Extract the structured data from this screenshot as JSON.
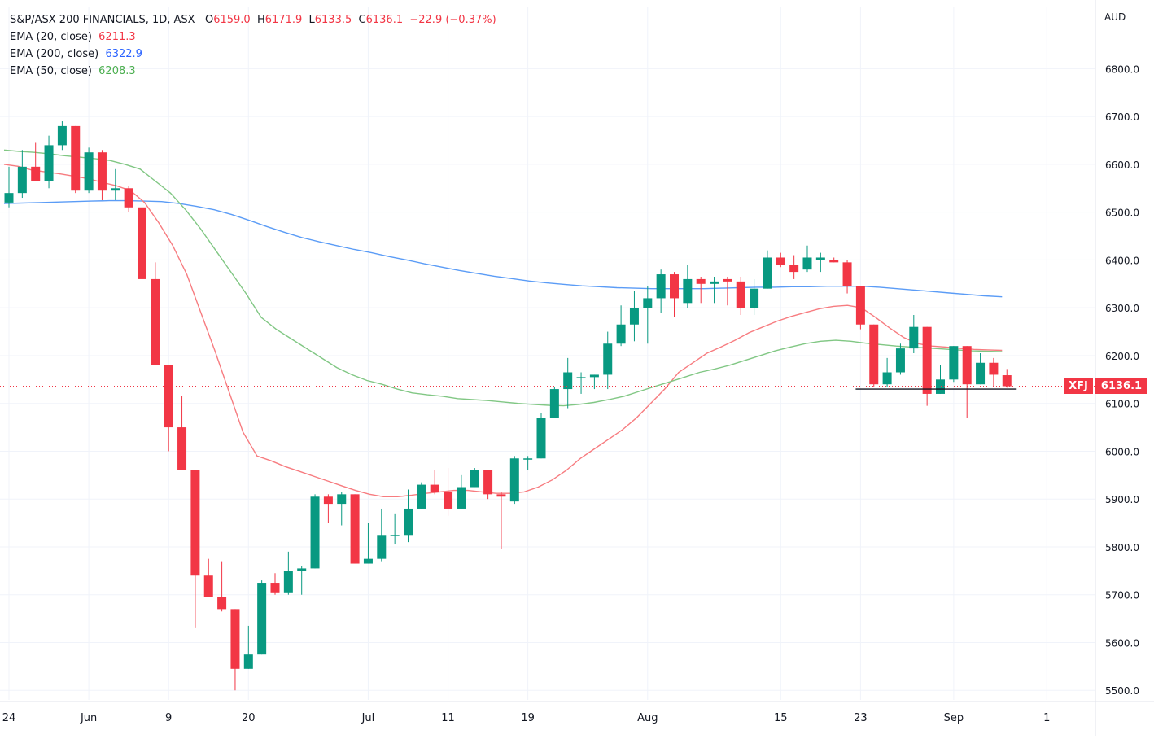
{
  "chart_data": {
    "type": "candlestick",
    "header": {
      "title": "S&P/ASX 200 FINANCIALS, 1D, ASX",
      "open_label": "O",
      "open": "6159.0",
      "high_label": "H",
      "high": "6171.9",
      "low_label": "L",
      "low": "6133.5",
      "close_label": "C",
      "close": "6136.1",
      "change": "−22.9 (−0.37%)"
    },
    "indicators": [
      {
        "label": "EMA (20, close)",
        "value": "6211.3",
        "color": "#f77c80"
      },
      {
        "label": "EMA (200, close)",
        "value": "6322.9",
        "color": "#5b9cf6"
      },
      {
        "label": "EMA (50, close)",
        "value": "6208.3",
        "color": "#81c784"
      }
    ],
    "currency": "AUD",
    "symbol": "XFJ",
    "last_price": "6136.1",
    "support_level": 6130,
    "y_axis": {
      "min": 5480,
      "max": 6930,
      "ticks": [
        5500,
        5600,
        5700,
        5800,
        5900,
        6000,
        6100,
        6200,
        6300,
        6400,
        6500,
        6600,
        6700,
        6800
      ]
    },
    "x_axis": {
      "labels": [
        {
          "label": "24",
          "index": 0
        },
        {
          "label": "Jun",
          "index": 6
        },
        {
          "label": "9",
          "index": 12
        },
        {
          "label": "20",
          "index": 18
        },
        {
          "label": "Jul",
          "index": 27
        },
        {
          "label": "11",
          "index": 33
        },
        {
          "label": "19",
          "index": 39
        },
        {
          "label": "Aug",
          "index": 48
        },
        {
          "label": "15",
          "index": 58
        },
        {
          "label": "23",
          "index": 64
        },
        {
          "label": "Sep",
          "index": 71
        },
        {
          "label": "1",
          "index": 78
        }
      ]
    },
    "candles": [
      {
        "o": 6520,
        "h": 6595,
        "l": 6510,
        "c": 6540
      },
      {
        "o": 6540,
        "h": 6630,
        "l": 6530,
        "c": 6595
      },
      {
        "o": 6595,
        "h": 6645,
        "l": 6570,
        "c": 6565
      },
      {
        "o": 6565,
        "h": 6660,
        "l": 6550,
        "c": 6640
      },
      {
        "o": 6640,
        "h": 6690,
        "l": 6630,
        "c": 6680
      },
      {
        "o": 6680,
        "h": 6680,
        "l": 6540,
        "c": 6545
      },
      {
        "o": 6545,
        "h": 6635,
        "l": 6540,
        "c": 6625
      },
      {
        "o": 6625,
        "h": 6630,
        "l": 6525,
        "c": 6545
      },
      {
        "o": 6545,
        "h": 6590,
        "l": 6525,
        "c": 6550
      },
      {
        "o": 6550,
        "h": 6555,
        "l": 6500,
        "c": 6510
      },
      {
        "o": 6510,
        "h": 6515,
        "l": 6355,
        "c": 6360
      },
      {
        "o": 6360,
        "h": 6395,
        "l": 6180,
        "c": 6180
      },
      {
        "o": 6180,
        "h": 6180,
        "l": 6000,
        "c": 6050
      },
      {
        "o": 6050,
        "h": 6115,
        "l": 5960,
        "c": 5960
      },
      {
        "o": 5960,
        "h": 5960,
        "l": 5630,
        "c": 5740
      },
      {
        "o": 5740,
        "h": 5775,
        "l": 5695,
        "c": 5695
      },
      {
        "o": 5695,
        "h": 5770,
        "l": 5665,
        "c": 5670
      },
      {
        "o": 5670,
        "h": 5670,
        "l": 5500,
        "c": 5545
      },
      {
        "o": 5545,
        "h": 5635,
        "l": 5545,
        "c": 5575
      },
      {
        "o": 5575,
        "h": 5730,
        "l": 5575,
        "c": 5725
      },
      {
        "o": 5725,
        "h": 5745,
        "l": 5700,
        "c": 5705
      },
      {
        "o": 5705,
        "h": 5790,
        "l": 5700,
        "c": 5750
      },
      {
        "o": 5750,
        "h": 5760,
        "l": 5700,
        "c": 5755
      },
      {
        "o": 5755,
        "h": 5910,
        "l": 5755,
        "c": 5905
      },
      {
        "o": 5905,
        "h": 5910,
        "l": 5850,
        "c": 5890
      },
      {
        "o": 5890,
        "h": 5915,
        "l": 5845,
        "c": 5910
      },
      {
        "o": 5910,
        "h": 5910,
        "l": 5765,
        "c": 5765
      },
      {
        "o": 5765,
        "h": 5850,
        "l": 5765,
        "c": 5775
      },
      {
        "o": 5775,
        "h": 5880,
        "l": 5770,
        "c": 5825
      },
      {
        "o": 5825,
        "h": 5870,
        "l": 5805,
        "c": 5825
      },
      {
        "o": 5825,
        "h": 5920,
        "l": 5810,
        "c": 5880
      },
      {
        "o": 5880,
        "h": 5935,
        "l": 5880,
        "c": 5930
      },
      {
        "o": 5930,
        "h": 5960,
        "l": 5910,
        "c": 5915
      },
      {
        "o": 5915,
        "h": 5965,
        "l": 5865,
        "c": 5880
      },
      {
        "o": 5880,
        "h": 5950,
        "l": 5880,
        "c": 5925
      },
      {
        "o": 5925,
        "h": 5965,
        "l": 5925,
        "c": 5960
      },
      {
        "o": 5960,
        "h": 5960,
        "l": 5900,
        "c": 5910
      },
      {
        "o": 5910,
        "h": 5915,
        "l": 5795,
        "c": 5905
      },
      {
        "o": 5895,
        "h": 5990,
        "l": 5890,
        "c": 5985
      },
      {
        "o": 5985,
        "h": 5990,
        "l": 5960,
        "c": 5985
      },
      {
        "o": 5985,
        "h": 6080,
        "l": 5985,
        "c": 6070
      },
      {
        "o": 6070,
        "h": 6135,
        "l": 6070,
        "c": 6130
      },
      {
        "o": 6130,
        "h": 6195,
        "l": 6090,
        "c": 6165
      },
      {
        "o": 6155,
        "h": 6165,
        "l": 6120,
        "c": 6155
      },
      {
        "o": 6155,
        "h": 6160,
        "l": 6130,
        "c": 6160
      },
      {
        "o": 6160,
        "h": 6250,
        "l": 6130,
        "c": 6225
      },
      {
        "o": 6225,
        "h": 6305,
        "l": 6220,
        "c": 6265
      },
      {
        "o": 6265,
        "h": 6335,
        "l": 6230,
        "c": 6300
      },
      {
        "o": 6300,
        "h": 6345,
        "l": 6225,
        "c": 6320
      },
      {
        "o": 6320,
        "h": 6380,
        "l": 6290,
        "c": 6370
      },
      {
        "o": 6370,
        "h": 6375,
        "l": 6280,
        "c": 6320
      },
      {
        "o": 6310,
        "h": 6390,
        "l": 6300,
        "c": 6360
      },
      {
        "o": 6360,
        "h": 6365,
        "l": 6310,
        "c": 6350
      },
      {
        "o": 6350,
        "h": 6365,
        "l": 6310,
        "c": 6355
      },
      {
        "o": 6360,
        "h": 6365,
        "l": 6305,
        "c": 6355
      },
      {
        "o": 6355,
        "h": 6365,
        "l": 6285,
        "c": 6300
      },
      {
        "o": 6300,
        "h": 6360,
        "l": 6285,
        "c": 6340
      },
      {
        "o": 6340,
        "h": 6420,
        "l": 6340,
        "c": 6405
      },
      {
        "o": 6405,
        "h": 6415,
        "l": 6385,
        "c": 6390
      },
      {
        "o": 6390,
        "h": 6410,
        "l": 6360,
        "c": 6375
      },
      {
        "o": 6380,
        "h": 6430,
        "l": 6375,
        "c": 6405
      },
      {
        "o": 6400,
        "h": 6415,
        "l": 6375,
        "c": 6405
      },
      {
        "o": 6400,
        "h": 6405,
        "l": 6395,
        "c": 6395
      },
      {
        "o": 6395,
        "h": 6400,
        "l": 6330,
        "c": 6345
      },
      {
        "o": 6345,
        "h": 6345,
        "l": 6255,
        "c": 6265
      },
      {
        "o": 6265,
        "h": 6265,
        "l": 6135,
        "c": 6140
      },
      {
        "o": 6140,
        "h": 6195,
        "l": 6135,
        "c": 6165
      },
      {
        "o": 6165,
        "h": 6225,
        "l": 6160,
        "c": 6215
      },
      {
        "o": 6215,
        "h": 6285,
        "l": 6205,
        "c": 6260
      },
      {
        "o": 6260,
        "h": 6260,
        "l": 6095,
        "c": 6120
      },
      {
        "o": 6120,
        "h": 6180,
        "l": 6120,
        "c": 6150
      },
      {
        "o": 6150,
        "h": 6220,
        "l": 6145,
        "c": 6220
      },
      {
        "o": 6220,
        "h": 6220,
        "l": 6070,
        "c": 6140
      },
      {
        "o": 6140,
        "h": 6205,
        "l": 6140,
        "c": 6185
      },
      {
        "o": 6185,
        "h": 6195,
        "l": 6135,
        "c": 6160
      },
      {
        "o": 6159,
        "h": 6172,
        "l": 6133,
        "c": 6136
      }
    ],
    "ema20": [
      6600,
      6596,
      6588,
      6584,
      6580,
      6575,
      6570,
      6562,
      6555,
      6545,
      6520,
      6478,
      6430,
      6370,
      6290,
      6210,
      6125,
      6040,
      5990,
      5980,
      5968,
      5958,
      5948,
      5938,
      5928,
      5918,
      5910,
      5905,
      5905,
      5908,
      5912,
      5915,
      5918,
      5918,
      5915,
      5912,
      5912,
      5915,
      5925,
      5940,
      5960,
      5985,
      6005,
      6025,
      6045,
      6070,
      6100,
      6130,
      6165,
      6185,
      6205,
      6218,
      6232,
      6248,
      6260,
      6272,
      6282,
      6290,
      6298,
      6303,
      6305,
      6300,
      6280,
      6258,
      6238,
      6225,
      6220,
      6218,
      6215,
      6213,
      6212,
      6211
    ],
    "ema50": [
      6630,
      6627,
      6625,
      6622,
      6618,
      6615,
      6612,
      6608,
      6600,
      6590,
      6565,
      6540,
      6505,
      6465,
      6420,
      6375,
      6330,
      6280,
      6255,
      6235,
      6215,
      6195,
      6175,
      6160,
      6148,
      6140,
      6130,
      6122,
      6118,
      6115,
      6110,
      6108,
      6106,
      6103,
      6100,
      6098,
      6096,
      6095,
      6098,
      6102,
      6108,
      6115,
      6125,
      6135,
      6145,
      6155,
      6165,
      6172,
      6180,
      6190,
      6200,
      6210,
      6218,
      6225,
      6230,
      6232,
      6230,
      6226,
      6223,
      6220,
      6218,
      6216,
      6214,
      6212,
      6210,
      6209,
      6208.3
    ],
    "ema200": [
      6518,
      6519,
      6520,
      6521,
      6522,
      6523,
      6524,
      6524,
      6523,
      6522,
      6518,
      6512,
      6505,
      6495,
      6483,
      6470,
      6458,
      6447,
      6438,
      6430,
      6422,
      6415,
      6407,
      6400,
      6392,
      6385,
      6378,
      6372,
      6366,
      6361,
      6356,
      6352,
      6349,
      6346,
      6344,
      6342,
      6341,
      6340,
      6340,
      6340,
      6340,
      6341,
      6342,
      6343,
      6343,
      6344,
      6344,
      6345,
      6345,
      6345,
      6343,
      6340,
      6337,
      6334,
      6331,
      6328,
      6325,
      6323
    ]
  }
}
